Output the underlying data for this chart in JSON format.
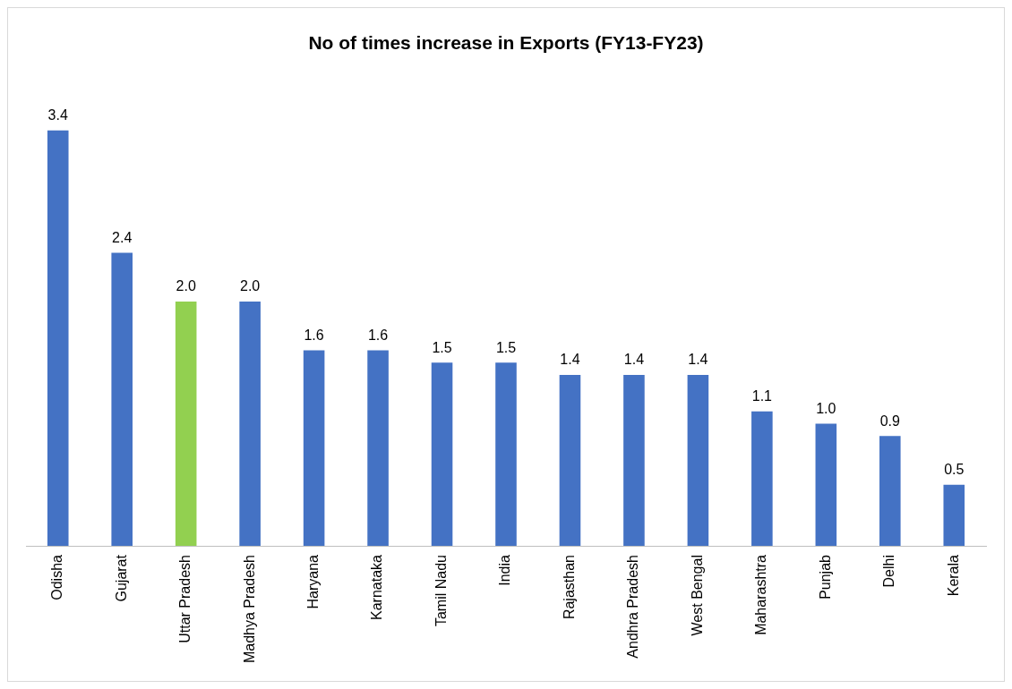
{
  "chart_data": {
    "type": "bar",
    "title": "No of times increase in Exports (FY13-FY23)",
    "categories": [
      "Odisha",
      "Gujarat",
      "Uttar Pradesh",
      "Madhya Pradesh",
      "Haryana",
      "Karnataka",
      "Tamil Nadu",
      "India",
      "Rajasthan",
      "Andhra Pradesh",
      "West Bengal",
      "Maharashtra",
      "Punjab",
      "Delhi",
      "Kerala"
    ],
    "values": [
      3.4,
      2.4,
      2.0,
      2.0,
      1.6,
      1.6,
      1.5,
      1.5,
      1.4,
      1.4,
      1.4,
      1.1,
      1.0,
      0.9,
      0.5
    ],
    "value_labels": [
      "3.4",
      "2.4",
      "2.0",
      "2.0",
      "1.6",
      "1.6",
      "1.5",
      "1.5",
      "1.4",
      "1.4",
      "1.4",
      "1.1",
      "1.0",
      "0.9",
      "0.5"
    ],
    "colors": [
      "#4472c4",
      "#4472c4",
      "#92d050",
      "#4472c4",
      "#4472c4",
      "#4472c4",
      "#4472c4",
      "#4472c4",
      "#4472c4",
      "#4472c4",
      "#4472c4",
      "#4472c4",
      "#4472c4",
      "#4472c4",
      "#4472c4"
    ],
    "grid": false,
    "legend": false
  }
}
